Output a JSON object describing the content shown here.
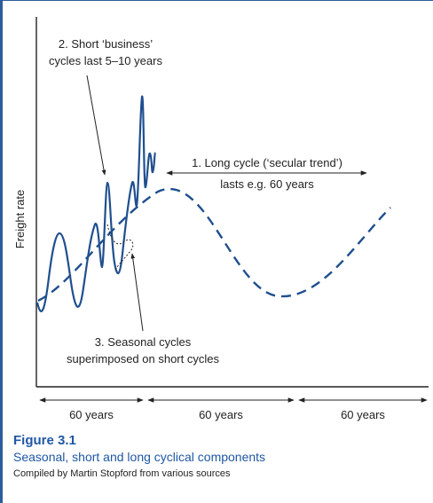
{
  "diagram": {
    "y_axis_label": "Freight rate",
    "annotations": {
      "short_cycle": [
        "2. Short ‘business’",
        "cycles last 5–10 years"
      ],
      "long_cycle": [
        "1. Long cycle (‘secular trend’)",
        "lasts e.g. 60 years"
      ],
      "seasonal": [
        "3. Seasonal cycles",
        "superimposed on short cycles"
      ]
    },
    "periods": [
      "60 years",
      "60 years",
      "60 years"
    ],
    "colors": {
      "curve": "#1f4f8f",
      "text": "#222222",
      "accent": "#1f57a4"
    }
  },
  "caption": {
    "figure_number": "Figure 3.1",
    "title": "Seasonal, short and long cyclical components",
    "source": "Compiled by Martin Stopford from various sources"
  }
}
